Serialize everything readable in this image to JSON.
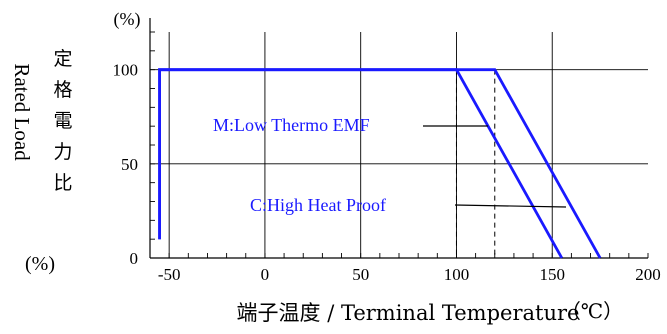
{
  "chart_data": {
    "type": "line",
    "title": "",
    "xlabel": "端子温度 / Terminal Temperature",
    "xunit": "（℃）",
    "ylabel_en": "Rated Load",
    "ylabel_jp": "定格電力比",
    "yunit_top": "(%)",
    "yunit_side": "(%)",
    "xlim": [
      -60,
      200
    ],
    "ylim": [
      0,
      120
    ],
    "x_ticks": [
      -50,
      0,
      50,
      100,
      150,
      200
    ],
    "y_ticks": [
      0,
      50,
      100
    ],
    "grid": true,
    "series": [
      {
        "name": "M:Low Thermo EMF",
        "color": "#1a1aff",
        "points": [
          [
            -55,
            10
          ],
          [
            -55,
            100
          ],
          [
            100,
            100
          ],
          [
            155,
            0
          ]
        ]
      },
      {
        "name": "C:High Heat Proof",
        "color": "#1a1aff",
        "points": [
          [
            -55,
            10
          ],
          [
            -55,
            100
          ],
          [
            120,
            100
          ],
          [
            175,
            0
          ]
        ]
      }
    ],
    "reference_lines": [
      {
        "x": 100,
        "style": "dashed"
      },
      {
        "x": 120,
        "style": "dashed"
      }
    ]
  }
}
